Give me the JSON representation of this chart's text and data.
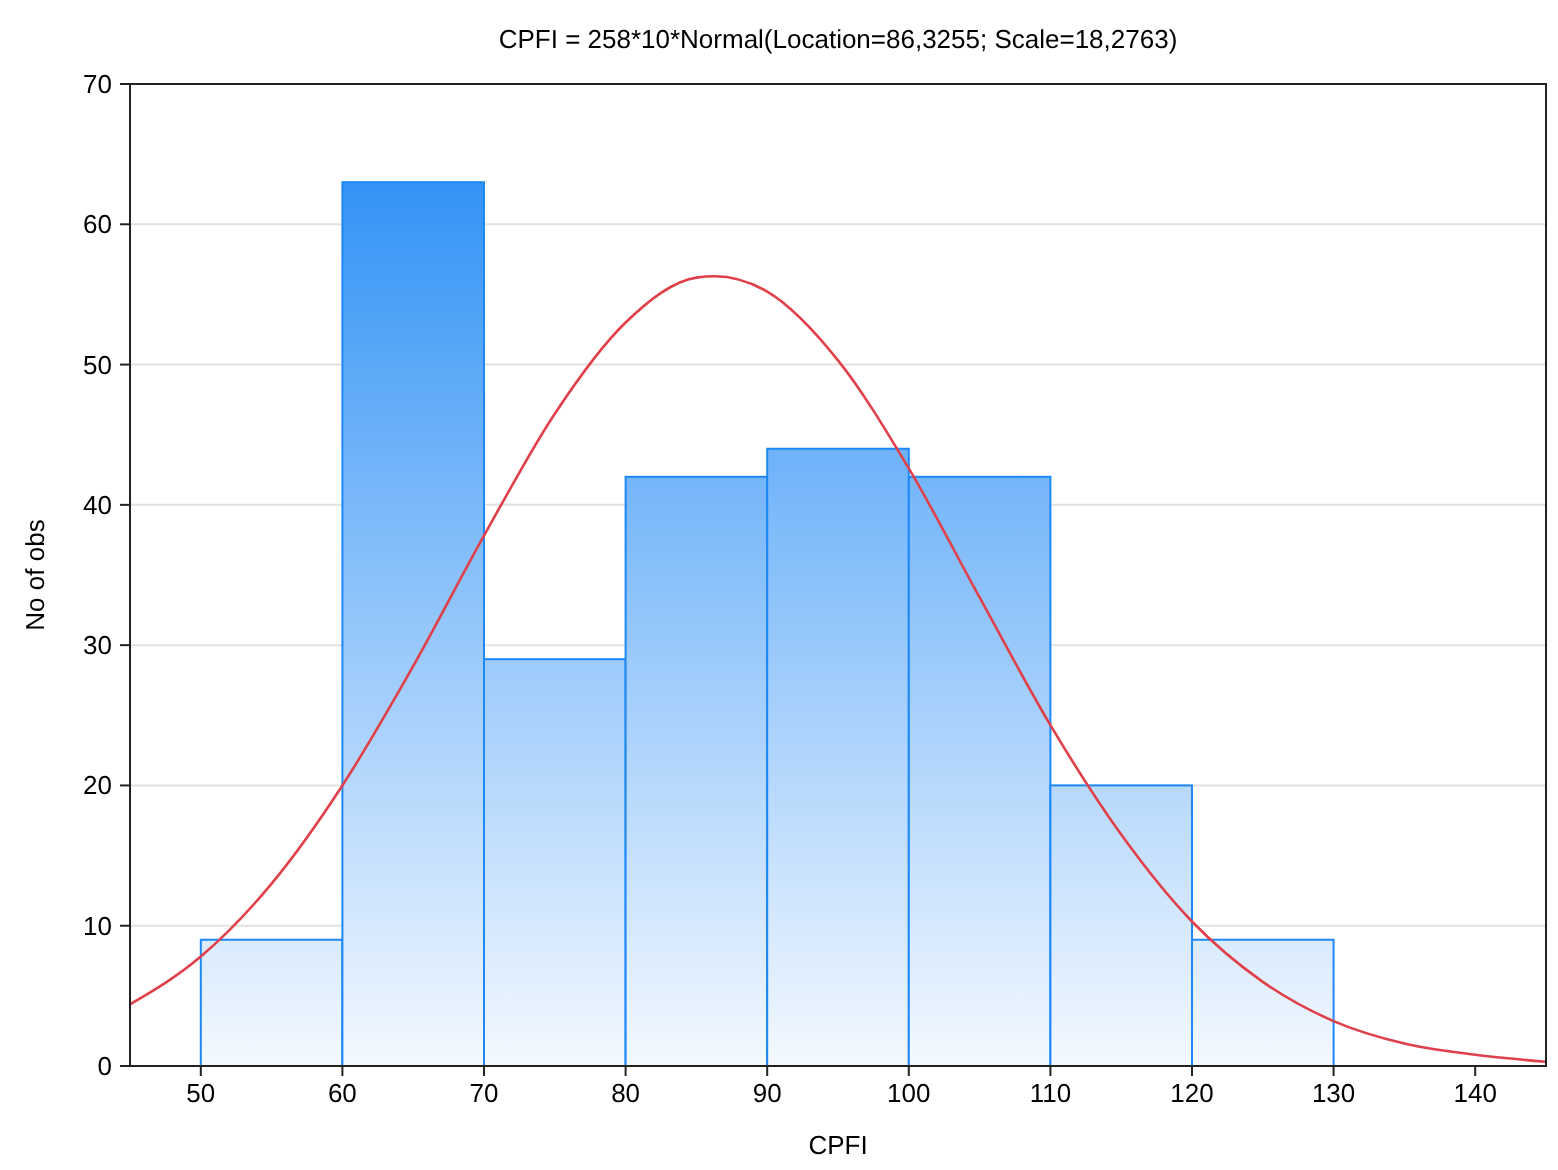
{
  "chart_data": {
    "type": "histogram",
    "title": "CPFI = 258*10*Normal(Location=86,3255; Scale=18,2763)",
    "xlabel": "CPFI",
    "ylabel": "No of obs",
    "bins": [
      50,
      60,
      70,
      80,
      90,
      100,
      110,
      120,
      130
    ],
    "values": [
      9,
      63,
      29,
      42,
      44,
      42,
      20,
      9
    ],
    "color": "#1e88f5",
    "series": [
      {
        "type": "line",
        "color": "#e0404a",
        "x": [
          45,
          50,
          55,
          60,
          65,
          70,
          75,
          80,
          85,
          86.3,
          90,
          95,
          100,
          105,
          110,
          115,
          120,
          125,
          130,
          135,
          140,
          145
        ],
        "values": [
          4.4,
          7.8,
          13,
          20,
          28.5,
          37.8,
          46.5,
          53,
          56.2,
          56.3,
          55.2,
          50.3,
          42.6,
          33.4,
          24.3,
          16.5,
          10.3,
          6,
          3.2,
          1.6,
          0.8,
          0.3
        ]
      }
    ],
    "xlim": [
      45,
      145
    ],
    "xticks": [
      50,
      60,
      70,
      80,
      90,
      100,
      110,
      120,
      130,
      140
    ],
    "ylim": [
      0,
      70
    ],
    "yticks": [
      0,
      10,
      20,
      30,
      40,
      50,
      60,
      70
    ],
    "grid": "y"
  }
}
